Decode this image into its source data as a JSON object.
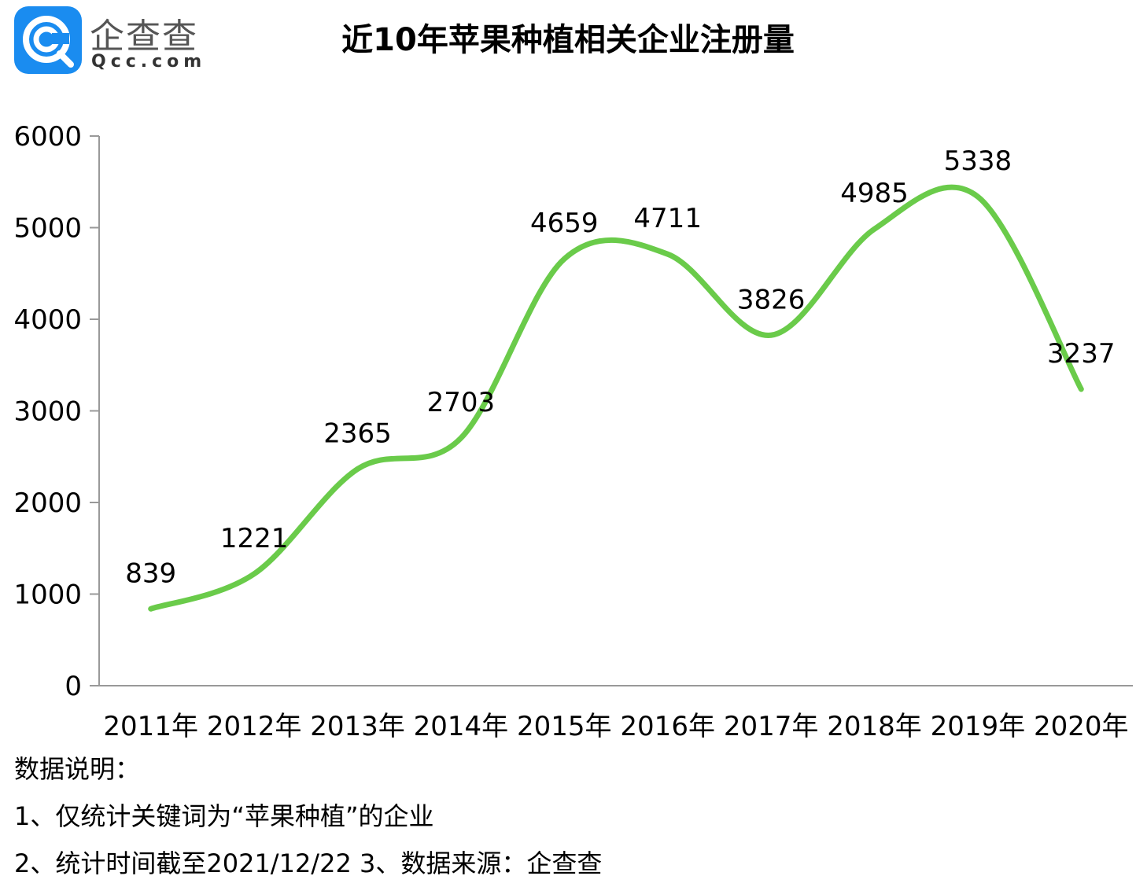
{
  "logo": {
    "name": "企查查",
    "url": "Qcc.com",
    "brand_color": "#1a8cf0"
  },
  "chart_data": {
    "type": "line",
    "title": "近10年苹果种植相关企业注册量",
    "categories": [
      "2011年",
      "2012年",
      "2013年",
      "2014年",
      "2015年",
      "2016年",
      "2017年",
      "2018年",
      "2019年",
      "2020年"
    ],
    "series": [
      {
        "values": [
          839,
          1221,
          2365,
          2703,
          4659,
          4711,
          3826,
          4985,
          5338,
          3237
        ],
        "color": "#6acb4a"
      }
    ],
    "data_labels": [
      "839",
      "1221",
      "2365",
      "2703",
      "4659",
      "4711",
      "3826",
      "4985",
      "5338",
      "3237"
    ],
    "y_ticks": [
      "0",
      "1000",
      "2000",
      "3000",
      "4000",
      "5000",
      "6000"
    ],
    "ylim": [
      0,
      6000
    ],
    "smooth": true,
    "grid": false
  },
  "notes": {
    "heading": "数据说明：",
    "line1": "1、仅统计关键词为“苹果种植”的企业",
    "line2": "2、统计时间截至2021/12/22  3、数据来源：企查查"
  }
}
